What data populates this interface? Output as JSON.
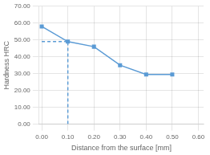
{
  "chart_data": {
    "type": "line",
    "xlabel": "Distance from the surface [mm]",
    "ylabel": "Hardness HRC",
    "series": [
      {
        "x": [
          0.0,
          0.1
        ],
        "values": [
          49.0,
          49.0
        ],
        "color": "#5B9BD5",
        "line_style": "dashed"
      },
      {
        "x": [
          0.1,
          0.1
        ],
        "values": [
          0.0,
          49.0
        ],
        "color": "#5B9BD5",
        "line_style": "dashed"
      },
      {
        "x": [
          0.0,
          0.1,
          0.2,
          0.3,
          0.4,
          0.5
        ],
        "values": [
          58.0,
          49.0,
          46.0,
          35.0,
          29.5,
          29.5
        ],
        "color": "#5B9BD5",
        "marker": "square"
      }
    ],
    "xlim": [
      -0.01,
      0.62
    ],
    "ylim": [
      0.0,
      70.0
    ],
    "xticks": [
      {
        "value": 0.0,
        "label": "0.00"
      },
      {
        "value": 0.1,
        "label": "0.10"
      },
      {
        "value": 0.2,
        "label": "0.20"
      },
      {
        "value": 0.3,
        "label": "0.30"
      },
      {
        "value": 0.4,
        "label": "0.40"
      },
      {
        "value": 0.5,
        "label": "0.50"
      },
      {
        "value": 0.6,
        "label": "0.60"
      }
    ],
    "yticks": [
      {
        "value": 0,
        "label": "0.00"
      },
      {
        "value": 10,
        "label": "10.00"
      },
      {
        "value": 20,
        "label": "20.00"
      },
      {
        "value": 30,
        "label": "30.00"
      },
      {
        "value": 40,
        "label": "40.00"
      },
      {
        "value": 50,
        "label": "50.00"
      },
      {
        "value": 60,
        "label": "60.00"
      },
      {
        "value": 70,
        "label": "70.00"
      }
    ],
    "grid": true
  }
}
